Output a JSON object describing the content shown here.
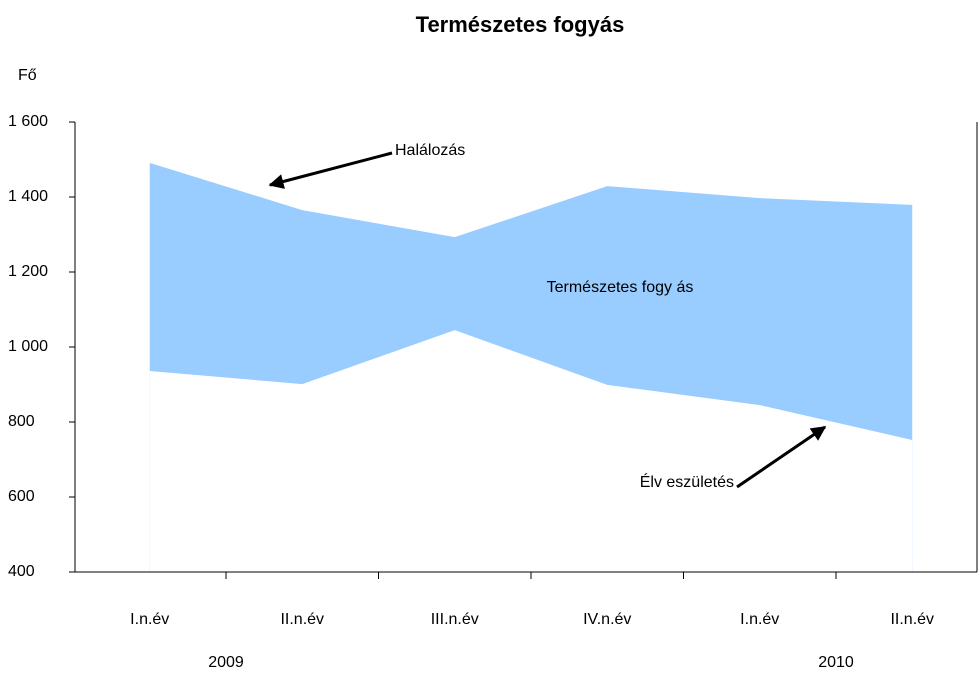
{
  "chart_data": {
    "type": "band",
    "title": "Természetes fogyás",
    "ylabel": "Fő",
    "categories": [
      "I.n.év",
      "II.n.év",
      "III.n.év",
      "IV.n.év",
      "I.n.év",
      "II.n.év"
    ],
    "groups": [
      "2009",
      "2010"
    ],
    "series": [
      {
        "name": "Halálozás",
        "color": "#99ccff",
        "values": [
          1491,
          1365,
          1293,
          1429,
          1397,
          1379
        ]
      },
      {
        "name": "Élv eszületés",
        "color": "#ffffff",
        "values": [
          936,
          901,
          1045,
          899,
          845,
          752
        ]
      }
    ],
    "band_label": "Természetes fogy ás",
    "ylim": [
      400,
      1600
    ],
    "yticks": [
      {
        "value": 1600,
        "label": "1 600"
      },
      {
        "value": 1400,
        "label": "1 400"
      },
      {
        "value": 1200,
        "label": "1 200"
      },
      {
        "value": 1000,
        "label": "1 000"
      },
      800,
      600,
      400
    ]
  }
}
